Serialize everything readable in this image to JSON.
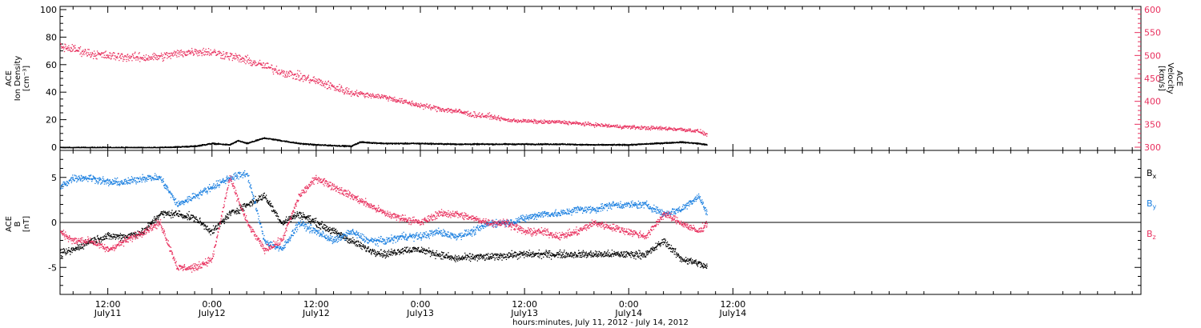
{
  "figure": {
    "xlabel": "hours:minutes, July 11, 2012 - July 14, 2012",
    "x_unit": "hours since July 11, 2012 00:00",
    "xlim": [
      6.5,
      131
    ],
    "x_ticks": [
      {
        "hour": 12,
        "time": "12:00",
        "date": "July11"
      },
      {
        "hour": 24,
        "time": "0:00",
        "date": "July12"
      },
      {
        "hour": 36,
        "time": "12:00",
        "date": "July12"
      },
      {
        "hour": 48,
        "time": "0:00",
        "date": "July13"
      },
      {
        "hour": 60,
        "time": "12:00",
        "date": "July13"
      },
      {
        "hour": 72,
        "time": "0:00",
        "date": "July14"
      },
      {
        "hour": 84,
        "time": "12:00",
        "date": "July14"
      }
    ]
  },
  "chart_data": [
    {
      "type": "scatter",
      "panel": "plasma",
      "title": "",
      "ylabel_left": [
        "ACE",
        "Ion Density",
        "[cm⁻³]"
      ],
      "ylabel_right": [
        "ACE",
        "Velocity",
        "[km/s]"
      ],
      "ylim_left": [
        0,
        100
      ],
      "ylim_right": [
        300,
        600
      ],
      "yticks_left": [
        0,
        20,
        40,
        60,
        80,
        100
      ],
      "yticks_right": [
        300,
        350,
        400,
        450,
        500,
        550,
        600
      ],
      "colors": {
        "density": "#000000",
        "velocity": "#e8305e"
      },
      "series": [
        {
          "axis": "left",
          "x": [
            6.5,
            10,
            14,
            18,
            20,
            22,
            24,
            26,
            27,
            28,
            30,
            32,
            34,
            36,
            38,
            40,
            41,
            44,
            48,
            52,
            56,
            60,
            64,
            68,
            72,
            75,
            78,
            80,
            81
          ],
          "y": [
            0,
            0,
            0,
            0,
            0.5,
            1,
            3,
            2,
            5,
            3,
            7,
            5,
            3,
            2,
            1.5,
            1,
            4,
            3,
            3,
            2.5,
            2.5,
            2.5,
            2.5,
            2,
            2,
            3,
            4,
            3,
            2
          ]
        },
        {
          "axis": "right",
          "x": [
            6.5,
            8,
            10,
            12,
            14,
            16,
            18,
            20,
            22,
            24,
            26,
            28,
            30,
            32,
            34,
            36,
            38,
            40,
            42,
            44,
            46,
            48,
            50,
            52,
            54,
            56,
            58,
            60,
            62,
            64,
            66,
            68,
            70,
            72,
            74,
            76,
            78,
            80,
            81
          ],
          "y": [
            520,
            515,
            505,
            500,
            498,
            496,
            498,
            505,
            510,
            508,
            500,
            490,
            478,
            465,
            455,
            445,
            432,
            420,
            415,
            410,
            400,
            392,
            385,
            380,
            372,
            368,
            360,
            358,
            356,
            356,
            353,
            350,
            347,
            345,
            343,
            342,
            340,
            336,
            328
          ]
        }
      ]
    },
    {
      "type": "scatter",
      "panel": "magnetic",
      "title": "",
      "ylabel": [
        "ACE",
        "B",
        "[nT]"
      ],
      "ylim": [
        -8,
        8
      ],
      "yticks": [
        -5,
        0,
        5
      ],
      "legend_position": "right",
      "series": [
        {
          "name": "Bx",
          "color": "#000000",
          "x": [
            6.5,
            8,
            10,
            12,
            14,
            16,
            18,
            20,
            22,
            24,
            26,
            28,
            30,
            32,
            34,
            36,
            38,
            40,
            42,
            44,
            46,
            48,
            50,
            52,
            54,
            56,
            58,
            60,
            62,
            64,
            66,
            68,
            70,
            72,
            74,
            76,
            78,
            80,
            81
          ],
          "y": [
            -3.5,
            -3,
            -2,
            -1.5,
            -1.5,
            -1,
            1,
            1,
            0.5,
            -1,
            1,
            2,
            3,
            0,
            1,
            0,
            -1,
            -2,
            -3,
            -3.5,
            -3,
            -3,
            -3.5,
            -4,
            -3.8,
            -3.8,
            -3.6,
            -3.5,
            -3.5,
            -3.5,
            -3.5,
            -3.5,
            -3.5,
            -3.5,
            -3.5,
            -2,
            -4,
            -4.5,
            -5
          ]
        },
        {
          "name": "By",
          "color": "#1a7fe0",
          "x": [
            6.5,
            8,
            10,
            12,
            14,
            16,
            18,
            20,
            22,
            24,
            26,
            28,
            30,
            32,
            34,
            36,
            38,
            40,
            42,
            44,
            46,
            48,
            50,
            52,
            54,
            56,
            58,
            60,
            62,
            64,
            66,
            68,
            70,
            72,
            74,
            76,
            78,
            80,
            81
          ],
          "y": [
            4,
            5,
            5,
            4.5,
            4.5,
            5,
            5,
            2,
            3,
            4,
            5,
            5.5,
            -2,
            -3,
            0,
            -1,
            -2,
            -1,
            -2,
            -2,
            -1.5,
            -1.5,
            -1,
            -1.5,
            -1,
            0,
            0,
            0.5,
            1,
            1,
            1.5,
            1.5,
            2,
            2,
            2,
            1,
            1.5,
            3,
            1
          ]
        },
        {
          "name": "Bz",
          "color": "#e8305e",
          "x": [
            6.5,
            8,
            10,
            12,
            14,
            16,
            18,
            20,
            22,
            24,
            26,
            28,
            30,
            32,
            34,
            36,
            38,
            40,
            42,
            44,
            46,
            48,
            50,
            52,
            54,
            56,
            58,
            60,
            62,
            64,
            66,
            68,
            70,
            72,
            74,
            76,
            78,
            80,
            81
          ],
          "y": [
            -1,
            -2,
            -2,
            -3,
            -2,
            -1,
            0,
            -5,
            -5,
            -4,
            5,
            0,
            -3,
            -2,
            3,
            5,
            4,
            3,
            2,
            1,
            0.5,
            0,
            1,
            1,
            0.5,
            0,
            0,
            -1,
            -1,
            -1.5,
            -1,
            0,
            -0.5,
            -1,
            -1.5,
            1,
            0,
            -1,
            0
          ]
        }
      ]
    }
  ]
}
